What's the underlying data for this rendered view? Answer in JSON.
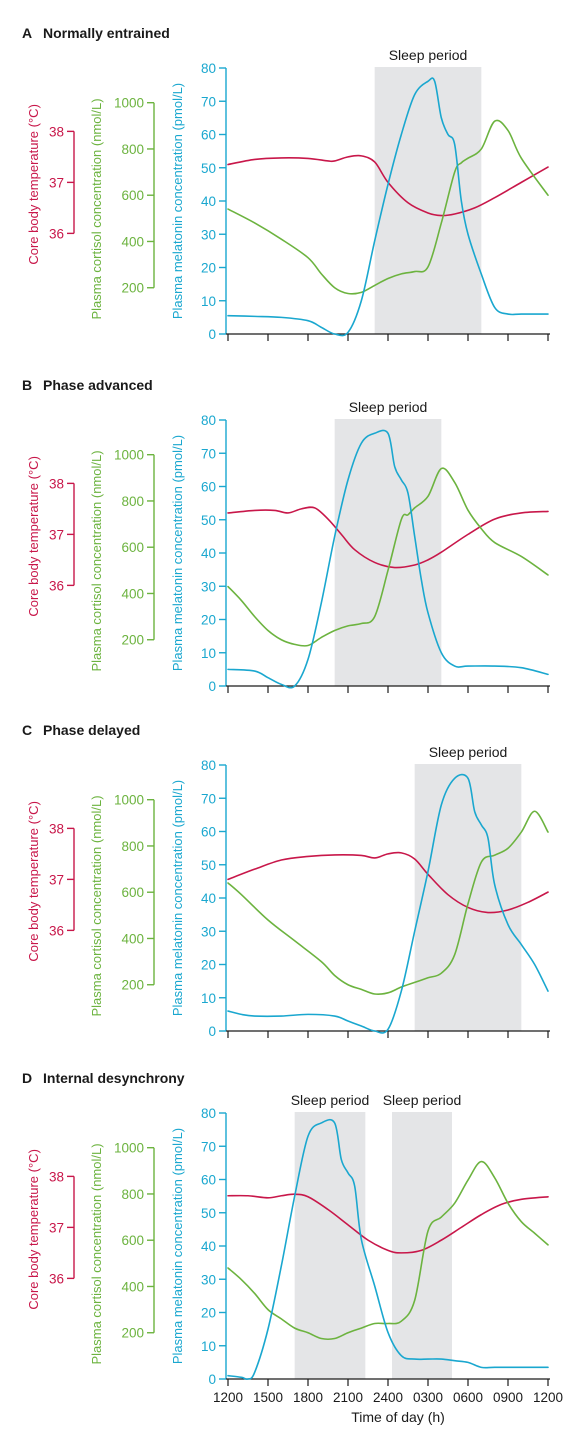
{
  "colors": {
    "temperature": "#c8174a",
    "cortisol": "#6cb33f",
    "melatonin": "#1aa7cf",
    "sleep_band": "#e4e5e7",
    "text": "#1a1a1a"
  },
  "sleep_label": "Sleep period",
  "axis_labels": {
    "temperature": "Core body temperature (°C)",
    "cortisol": "Plasma cortisol concentration (nmol/L)",
    "melatonin": "Plasma melatonin concentration (pmol/L)",
    "x": "Time of day (h)"
  },
  "chart_data": [
    {
      "type": "line",
      "panel_letter": "A",
      "title": "Normally entrained",
      "xlim": [
        0,
        24
      ],
      "x_ticks": [
        "1200",
        "1500",
        "1800",
        "2100",
        "2400",
        "0300",
        "0600",
        "0900",
        "1200"
      ],
      "show_x_tick_labels": false,
      "sleep_periods": [
        [
          11,
          19
        ]
      ],
      "temperature_axis": {
        "ticks": [
          36,
          37,
          38
        ],
        "range": [
          35.7,
          38.3
        ]
      },
      "cortisol_axis": {
        "ticks": [
          200,
          400,
          600,
          800,
          1000
        ],
        "range": [
          0,
          1150
        ]
      },
      "melatonin_axis": {
        "ticks": [
          0,
          10,
          20,
          30,
          40,
          50,
          60,
          70,
          80
        ],
        "range": [
          0,
          80
        ]
      },
      "series": [
        {
          "key": "temperature",
          "x": [
            0,
            2,
            4,
            6,
            7.5,
            8,
            9,
            10,
            11,
            12,
            13.5,
            15,
            16,
            17,
            18.5,
            20,
            22,
            24
          ],
          "y": [
            37.35,
            37.45,
            37.48,
            37.47,
            37.42,
            37.42,
            37.5,
            37.52,
            37.4,
            37.0,
            36.6,
            36.4,
            36.35,
            36.38,
            36.5,
            36.7,
            37.0,
            37.3
          ]
        },
        {
          "key": "cortisol",
          "x": [
            0,
            2,
            4,
            6,
            7,
            8,
            9,
            10,
            11,
            12,
            13,
            14,
            15,
            16,
            17,
            17.5,
            18,
            19,
            20,
            21,
            22,
            24
          ],
          "y": [
            540,
            480,
            410,
            330,
            260,
            200,
            175,
            180,
            210,
            240,
            260,
            270,
            290,
            480,
            700,
            740,
            760,
            800,
            920,
            880,
            760,
            600
          ]
        },
        {
          "key": "melatonin",
          "x": [
            0,
            2,
            4,
            6,
            7,
            8,
            9,
            10,
            11,
            12,
            13,
            14,
            15,
            15.5,
            16,
            16.5,
            17,
            17.5,
            18,
            19,
            20,
            21,
            22,
            24
          ],
          "y": [
            5.5,
            5.3,
            5,
            4,
            2,
            0,
            0.5,
            10,
            28,
            45,
            60,
            72,
            76,
            76,
            65,
            60,
            57,
            40,
            30,
            18,
            8,
            6,
            6,
            6
          ]
        }
      ]
    },
    {
      "type": "line",
      "panel_letter": "B",
      "title": "Phase advanced",
      "xlim": [
        0,
        24
      ],
      "x_ticks": [
        "1200",
        "1500",
        "1800",
        "2100",
        "2400",
        "0300",
        "0600",
        "0900",
        "1200"
      ],
      "show_x_tick_labels": false,
      "sleep_periods": [
        [
          8,
          16
        ]
      ],
      "temperature_axis": {
        "ticks": [
          36,
          37,
          38
        ],
        "range": [
          35.7,
          38.3
        ]
      },
      "cortisol_axis": {
        "ticks": [
          200,
          400,
          600,
          800,
          1000
        ],
        "range": [
          0,
          1150
        ]
      },
      "melatonin_axis": {
        "ticks": [
          0,
          10,
          20,
          30,
          40,
          50,
          60,
          70,
          80
        ],
        "range": [
          0,
          80
        ]
      },
      "series": [
        {
          "key": "temperature",
          "x": [
            0,
            2,
            3.5,
            4.5,
            5.5,
            6.5,
            7.5,
            8.5,
            9.5,
            11,
            12.5,
            14,
            15,
            16,
            18,
            20,
            22,
            24
          ],
          "y": [
            37.42,
            37.47,
            37.47,
            37.42,
            37.5,
            37.52,
            37.3,
            37.0,
            36.7,
            36.45,
            36.35,
            36.4,
            36.5,
            36.65,
            37.0,
            37.3,
            37.42,
            37.45
          ]
        },
        {
          "key": "cortisol",
          "x": [
            0,
            1,
            2,
            3,
            4,
            5,
            6,
            7,
            8,
            9,
            10,
            11,
            12,
            13,
            13.5,
            14,
            15,
            16,
            17,
            18,
            19,
            20,
            22,
            24
          ],
          "y": [
            430,
            370,
            300,
            240,
            200,
            180,
            175,
            210,
            240,
            260,
            270,
            300,
            500,
            720,
            740,
            770,
            820,
            940,
            880,
            760,
            680,
            620,
            560,
            480
          ]
        },
        {
          "key": "melatonin",
          "x": [
            0,
            2,
            3,
            4,
            5,
            6,
            7,
            8,
            9,
            10,
            11,
            12,
            12.5,
            13,
            13.5,
            14,
            14.5,
            15,
            16,
            17,
            18,
            20,
            22,
            24
          ],
          "y": [
            5,
            4.5,
            2.5,
            0.5,
            0,
            8,
            25,
            45,
            62,
            73,
            76,
            76,
            66,
            62,
            58,
            45,
            32,
            22,
            10,
            6,
            6,
            6,
            5.5,
            3.5
          ]
        }
      ]
    },
    {
      "type": "line",
      "panel_letter": "C",
      "title": "Phase delayed",
      "xlim": [
        0,
        24
      ],
      "x_ticks": [
        "1200",
        "1500",
        "1800",
        "2100",
        "2400",
        "0300",
        "0600",
        "0900",
        "1200"
      ],
      "show_x_tick_labels": false,
      "sleep_periods": [
        [
          14,
          22
        ]
      ],
      "temperature_axis": {
        "ticks": [
          36,
          37,
          38
        ],
        "range": [
          35.7,
          38.3
        ]
      },
      "cortisol_axis": {
        "ticks": [
          200,
          400,
          600,
          800,
          1000
        ],
        "range": [
          0,
          1150
        ]
      },
      "melatonin_axis": {
        "ticks": [
          0,
          10,
          20,
          30,
          40,
          50,
          60,
          70,
          80
        ],
        "range": [
          0,
          80
        ]
      },
      "series": [
        {
          "key": "temperature",
          "x": [
            0,
            2,
            4,
            6,
            8,
            10,
            11,
            12,
            13,
            14,
            15,
            16.5,
            18,
            19.5,
            21,
            22.5,
            24
          ],
          "y": [
            37.0,
            37.2,
            37.38,
            37.45,
            37.48,
            37.47,
            37.42,
            37.5,
            37.52,
            37.4,
            37.1,
            36.7,
            36.45,
            36.35,
            36.4,
            36.55,
            36.75
          ]
        },
        {
          "key": "cortisol",
          "x": [
            0,
            1,
            3,
            5,
            7,
            8,
            9,
            10,
            11,
            12,
            13,
            14,
            15,
            16,
            17,
            18,
            19,
            20,
            21,
            22,
            23,
            24
          ],
          "y": [
            640,
            590,
            480,
            390,
            300,
            240,
            200,
            180,
            160,
            165,
            190,
            210,
            230,
            250,
            330,
            550,
            730,
            760,
            790,
            860,
            950,
            860
          ]
        },
        {
          "key": "melatonin",
          "x": [
            0,
            1,
            2,
            4,
            6,
            8,
            9,
            10,
            11,
            12,
            13,
            14,
            15,
            16,
            17,
            18,
            18.5,
            19,
            19.5,
            20,
            21,
            22,
            23,
            24
          ],
          "y": [
            6,
            5,
            4.5,
            4.5,
            5,
            4.5,
            3,
            1.5,
            0,
            0.5,
            12,
            30,
            48,
            68,
            76,
            76,
            66,
            62,
            58,
            44,
            32,
            26,
            20,
            12
          ]
        }
      ]
    },
    {
      "type": "line",
      "panel_letter": "D",
      "title": "Internal desynchrony",
      "xlim": [
        0,
        24
      ],
      "x_ticks": [
        "1200",
        "1500",
        "1800",
        "2100",
        "2400",
        "0300",
        "0600",
        "0900",
        "1200"
      ],
      "show_x_tick_labels": true,
      "sleep_periods": [
        [
          5,
          10.3
        ],
        [
          12.3,
          16.8
        ]
      ],
      "temperature_axis": {
        "ticks": [
          36,
          37,
          38
        ],
        "range": [
          35.7,
          38.3
        ]
      },
      "cortisol_axis": {
        "ticks": [
          200,
          400,
          600,
          800,
          1000
        ],
        "range": [
          0,
          1150
        ]
      },
      "melatonin_axis": {
        "ticks": [
          0,
          10,
          20,
          30,
          40,
          50,
          60,
          70,
          80
        ],
        "range": [
          0,
          80
        ]
      },
      "series": [
        {
          "key": "temperature",
          "x": [
            0,
            1.5,
            3,
            4,
            5,
            6,
            7.5,
            9,
            10.5,
            12,
            13,
            14.5,
            16,
            17.5,
            19,
            20.5,
            22,
            24
          ],
          "y": [
            37.62,
            37.62,
            37.58,
            37.62,
            37.65,
            37.6,
            37.35,
            37.05,
            36.75,
            36.55,
            36.5,
            36.55,
            36.75,
            37.0,
            37.25,
            37.45,
            37.55,
            37.6
          ]
        },
        {
          "key": "cortisol",
          "x": [
            0,
            1,
            2,
            3,
            4,
            5,
            6,
            7,
            8,
            9,
            10,
            11,
            12,
            13,
            14,
            15,
            16,
            17,
            18,
            19,
            20,
            21,
            22,
            23,
            24
          ],
          "y": [
            480,
            430,
            370,
            300,
            260,
            220,
            200,
            175,
            175,
            200,
            220,
            240,
            240,
            250,
            340,
            640,
            700,
            760,
            860,
            940,
            870,
            760,
            680,
            630,
            580
          ]
        },
        {
          "key": "melatonin",
          "x": [
            0,
            1,
            1.5,
            2,
            3,
            4,
            5,
            6,
            7,
            8,
            8.5,
            9,
            9.5,
            10,
            11,
            12,
            13,
            14,
            15,
            16,
            17,
            18,
            19,
            20,
            22,
            24
          ],
          "y": [
            1,
            0.5,
            0,
            2,
            15,
            34,
            55,
            73,
            77,
            77,
            66,
            62,
            58,
            42,
            28,
            14,
            7,
            6,
            6,
            6,
            5.5,
            5,
            3.5,
            3.5,
            3.5,
            3.5
          ]
        }
      ]
    }
  ]
}
